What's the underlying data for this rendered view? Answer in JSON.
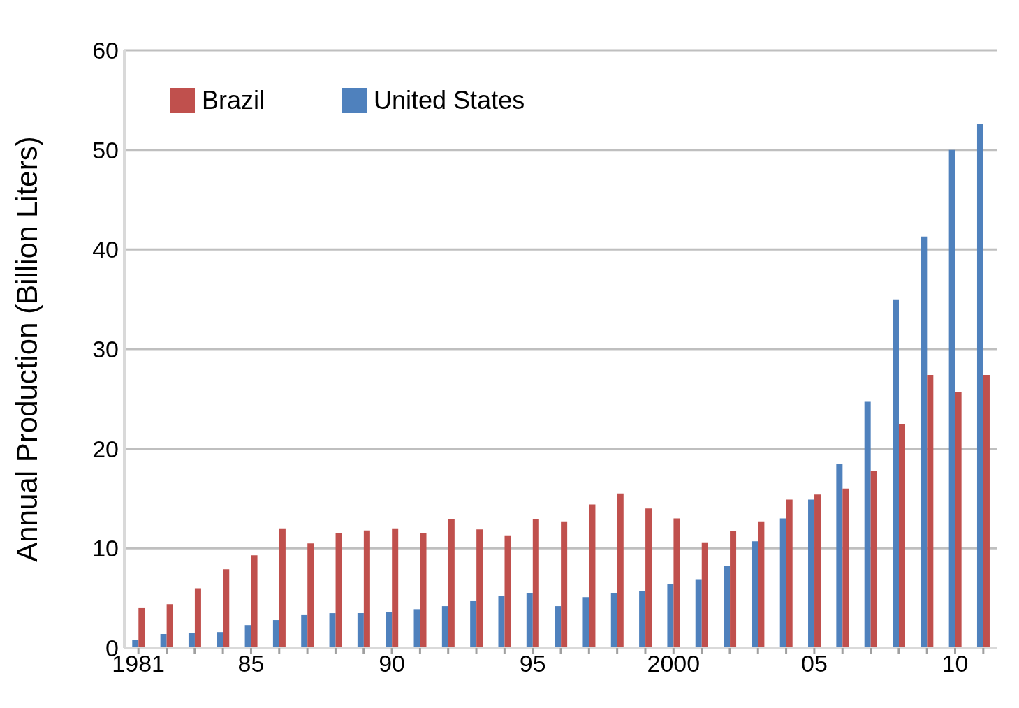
{
  "chart_data": {
    "type": "bar",
    "ylabel": "Annual Production (Billion Liters)",
    "categories": [
      "1981",
      null,
      null,
      null,
      "85",
      null,
      null,
      null,
      null,
      "90",
      null,
      null,
      null,
      null,
      "95",
      null,
      null,
      null,
      null,
      "2000",
      null,
      null,
      null,
      null,
      "05",
      null,
      null,
      null,
      null,
      "10",
      null
    ],
    "series": [
      {
        "name": "United States",
        "color": "#4f81bd",
        "values": [
          0.8,
          1.4,
          1.5,
          1.6,
          2.3,
          2.8,
          3.3,
          3.5,
          3.5,
          3.6,
          3.9,
          4.2,
          4.7,
          5.2,
          5.5,
          4.2,
          5.1,
          5.5,
          5.7,
          6.4,
          6.9,
          8.2,
          10.7,
          13.0,
          14.9,
          18.5,
          24.7,
          35.0,
          41.3,
          50.0,
          52.6
        ]
      },
      {
        "name": "Brazil",
        "color": "#c0504d",
        "values": [
          4.0,
          4.4,
          6.0,
          7.9,
          9.3,
          12.0,
          10.5,
          11.5,
          11.8,
          12.0,
          11.5,
          12.9,
          11.9,
          11.3,
          12.9,
          12.7,
          14.4,
          15.5,
          14.0,
          13.0,
          10.6,
          11.7,
          12.7,
          14.9,
          15.4,
          16.0,
          17.8,
          22.5,
          27.4,
          25.7,
          27.4
        ]
      }
    ],
    "ylim": [
      0,
      60
    ],
    "yticks": [
      0,
      10,
      20,
      30,
      40,
      50,
      60
    ],
    "grid": "y",
    "legend": "top left"
  }
}
